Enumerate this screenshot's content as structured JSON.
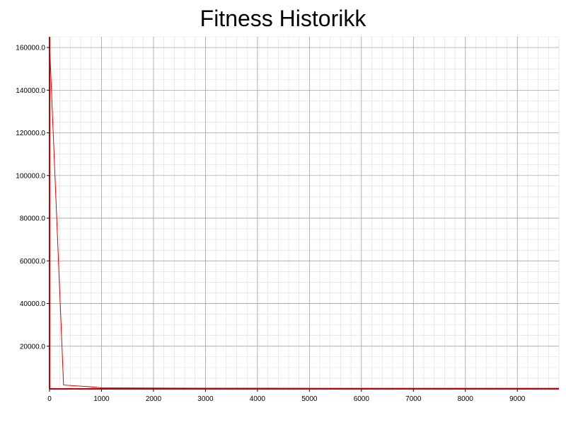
{
  "chart_data": {
    "type": "line",
    "title": "Fitness Historikk",
    "xlabel": "",
    "ylabel": "",
    "xlim": [
      0,
      9800
    ],
    "ylim": [
      0,
      165000
    ],
    "x_ticks": [
      0,
      1000,
      2000,
      3000,
      4000,
      5000,
      6000,
      7000,
      8000,
      9000
    ],
    "x_tick_labels": [
      "0",
      "1000",
      "2000",
      "3000",
      "4000",
      "5000",
      "6000",
      "7000",
      "8000",
      "9000"
    ],
    "y_ticks": [
      20000,
      40000,
      60000,
      80000,
      100000,
      120000,
      140000,
      160000
    ],
    "y_tick_labels": [
      "20000.0",
      "40000.0",
      "60000.0",
      "80000.0",
      "100000.0",
      "120000.0",
      "140000.0",
      "160000.0"
    ],
    "grid": true,
    "legend": "none",
    "series": [
      {
        "color": "#e00000",
        "x": [
          0,
          270,
          780,
          1000,
          2000,
          3000,
          5000,
          7000,
          9000,
          9800
        ],
        "y": [
          162000,
          1800,
          1000,
          500,
          400,
          350,
          300,
          300,
          300,
          300
        ]
      }
    ],
    "colors": {
      "axis": "#cc0000",
      "major_grid": "#999999",
      "minor_grid": "#dddddd"
    }
  }
}
